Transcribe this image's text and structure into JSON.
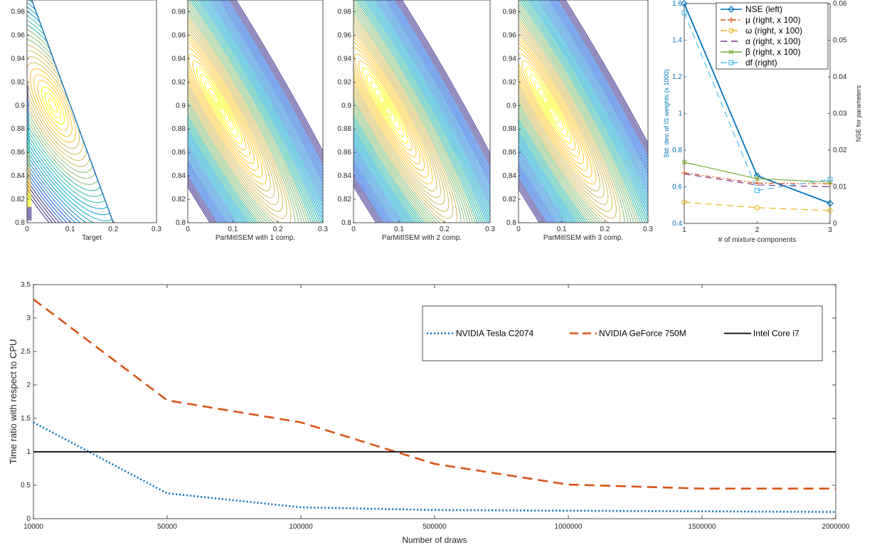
{
  "contour_panels": [
    {
      "xlabel": "Target",
      "xticks": [
        "0",
        "0.1",
        "0.2",
        "0.3"
      ],
      "yticks": [
        "0.8",
        "0.82",
        "0.84",
        "0.86",
        "0.88",
        "0.9",
        "0.92",
        "0.94",
        "0.96",
        "0.98"
      ]
    },
    {
      "xlabel": "ParMitISEM with 1 comp.",
      "xticks": [
        "0",
        "0.1",
        "0.2",
        "0.3"
      ],
      "yticks": [
        "0.8",
        "0.82",
        "0.84",
        "0.86",
        "0.88",
        "0.9",
        "0.92",
        "0.94",
        "0.96",
        "0.98"
      ]
    },
    {
      "xlabel": "ParMitISEM with 2 comp.",
      "xticks": [
        "0",
        "0.1",
        "0.2",
        "0.3"
      ],
      "yticks": [
        "0.8",
        "0.82",
        "0.84",
        "0.86",
        "0.88",
        "0.9",
        "0.92",
        "0.94",
        "0.96",
        "0.98"
      ]
    },
    {
      "xlabel": "ParMitISEM with 3 comp.",
      "xticks": [
        "0",
        "0.1",
        "0.2",
        "0.3"
      ],
      "yticks": [
        "0.8",
        "0.82",
        "0.84",
        "0.86",
        "0.88",
        "0.9",
        "0.92",
        "0.94",
        "0.96",
        "0.98"
      ]
    }
  ],
  "chart_data": [
    {
      "type": "line",
      "xlabel": "# of mixture components",
      "ylabel_left": "Std. dev. of IS weights (x 1000)",
      "ylabel_right": "NSE for parameters",
      "x": [
        1,
        2,
        3
      ],
      "xticks": [
        "1",
        "2",
        "3"
      ],
      "ylim_left": [
        0.4,
        1.6
      ],
      "yticks_left": [
        "0.4",
        "0.6",
        "0.8",
        "1",
        "1.2",
        "1.4",
        "1.6"
      ],
      "ylim_right": [
        0,
        0.06
      ],
      "yticks_right": [
        "0",
        "0.01",
        "0.02",
        "0.03",
        "0.04",
        "0.05",
        "0.06"
      ],
      "legend_position": "top-right",
      "series": [
        {
          "name": "NSE (left)",
          "axis": "left",
          "values": [
            1.6,
            0.66,
            0.51
          ],
          "color": "#0072bd",
          "dash": "solid",
          "marker": "diamond"
        },
        {
          "name": "μ (right, x 100)",
          "axis": "right",
          "values": [
            0.0138,
            0.011,
            0.0108
          ],
          "color": "#d95319",
          "dash": "dashdot",
          "marker": "plus"
        },
        {
          "name": "ω (right, x 100)",
          "axis": "right",
          "values": [
            0.0058,
            0.0043,
            0.0035
          ],
          "color": "#edb120",
          "dash": "dashed",
          "marker": "circle"
        },
        {
          "name": "α (right, x 100)",
          "axis": "right",
          "values": [
            0.0135,
            0.0105,
            0.01
          ],
          "color": "#7e2f8e",
          "dash": "dashed",
          "marker": "none"
        },
        {
          "name": "β (right, x 100)",
          "axis": "right",
          "values": [
            0.0167,
            0.0122,
            0.0113
          ],
          "color": "#77ac30",
          "dash": "solid",
          "marker": "x"
        },
        {
          "name": "df (right)",
          "axis": "right",
          "values": [
            0.0575,
            0.009,
            0.012
          ],
          "color": "#4dbeee",
          "dash": "dashed",
          "marker": "square"
        }
      ]
    },
    {
      "type": "line",
      "xlabel": "Number of draws",
      "ylabel": "Time ratio with respect to CPU",
      "categories": [
        "10000",
        "50000",
        "100000",
        "500000",
        "1000000",
        "1500000",
        "2000000"
      ],
      "ylim": [
        0,
        3.5
      ],
      "yticks": [
        "0",
        "0.5",
        "1",
        "1.5",
        "2",
        "2.5",
        "3",
        "3.5"
      ],
      "legend_position": "top-right",
      "series": [
        {
          "name": "NVIDIA Tesla C2074",
          "values": [
            1.44,
            0.38,
            0.17,
            0.13,
            0.12,
            0.11,
            0.1
          ],
          "color": "#0072bd",
          "dash": "dotted"
        },
        {
          "name": "NVIDIA GeForce 750M",
          "values": [
            3.28,
            1.77,
            1.44,
            0.82,
            0.51,
            0.45,
            0.45
          ],
          "color": "#d95319",
          "dash": "dashed"
        },
        {
          "name": "Intel Core i7",
          "values": [
            1,
            1,
            1,
            1,
            1,
            1,
            1
          ],
          "color": "#000000",
          "dash": "solid"
        }
      ]
    }
  ]
}
